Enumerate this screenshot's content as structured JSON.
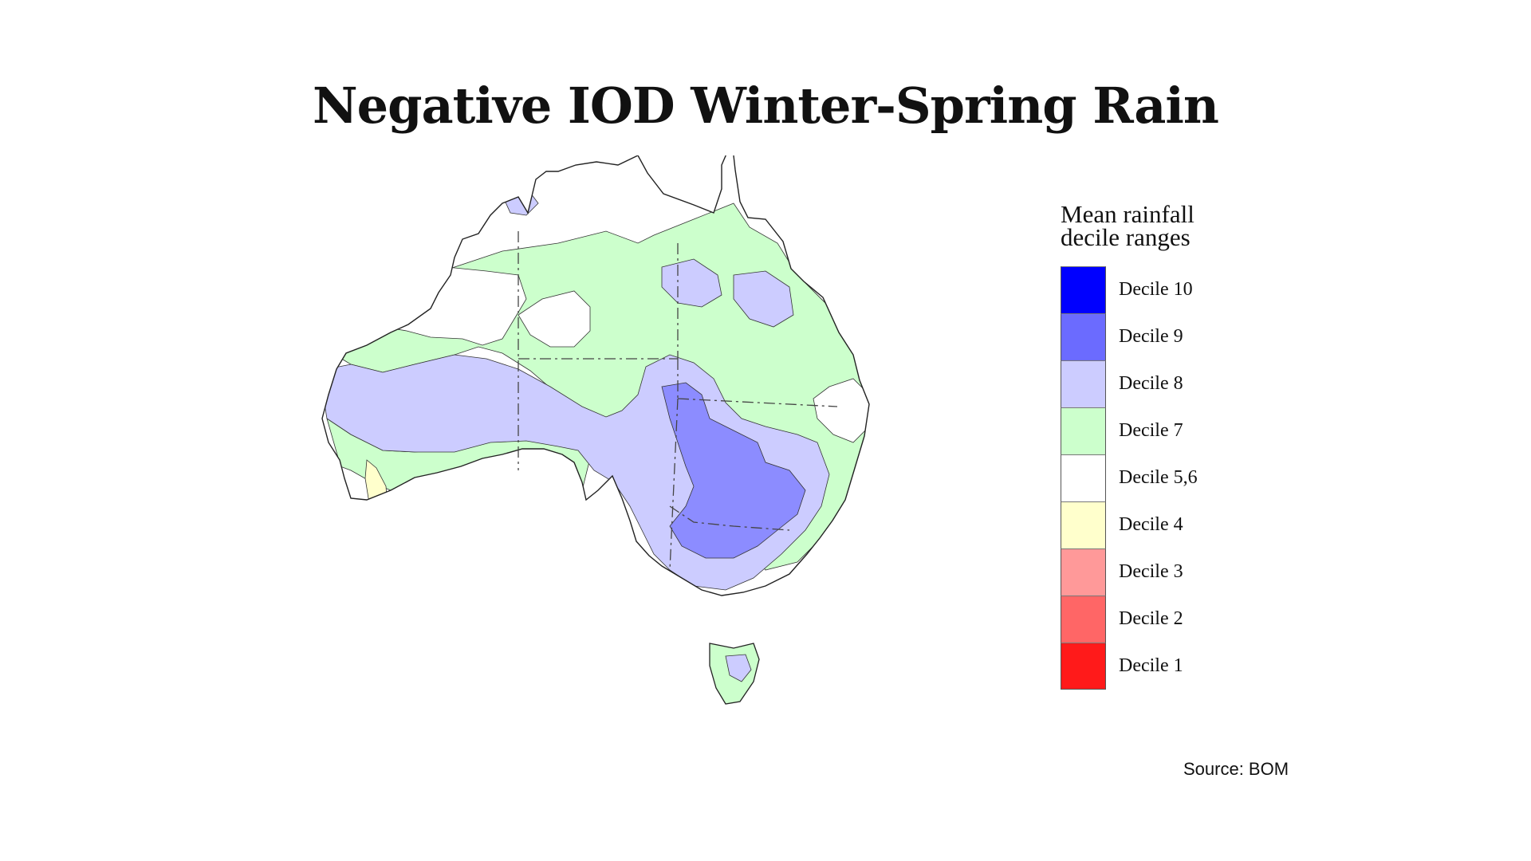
{
  "title": "Negative IOD Winter-Spring Rain",
  "legend": {
    "title_lines": [
      "Mean rainfall",
      "decile ranges"
    ],
    "items": [
      {
        "label": "Decile 10",
        "color": "#0000ff"
      },
      {
        "label": "Decile 9",
        "color": "#6b6bff"
      },
      {
        "label": "Decile 8",
        "color": "#ccccff"
      },
      {
        "label": "Decile 7",
        "color": "#ccffcc"
      },
      {
        "label": "Decile 5,6",
        "color": "#ffffff"
      },
      {
        "label": "Decile 4",
        "color": "#ffffcc"
      },
      {
        "label": "Decile 3",
        "color": "#ff9999"
      },
      {
        "label": "Decile 2",
        "color": "#ff6666"
      },
      {
        "label": "Decile 1",
        "color": "#ff1a1a"
      }
    ]
  },
  "source": "Source: BOM"
}
